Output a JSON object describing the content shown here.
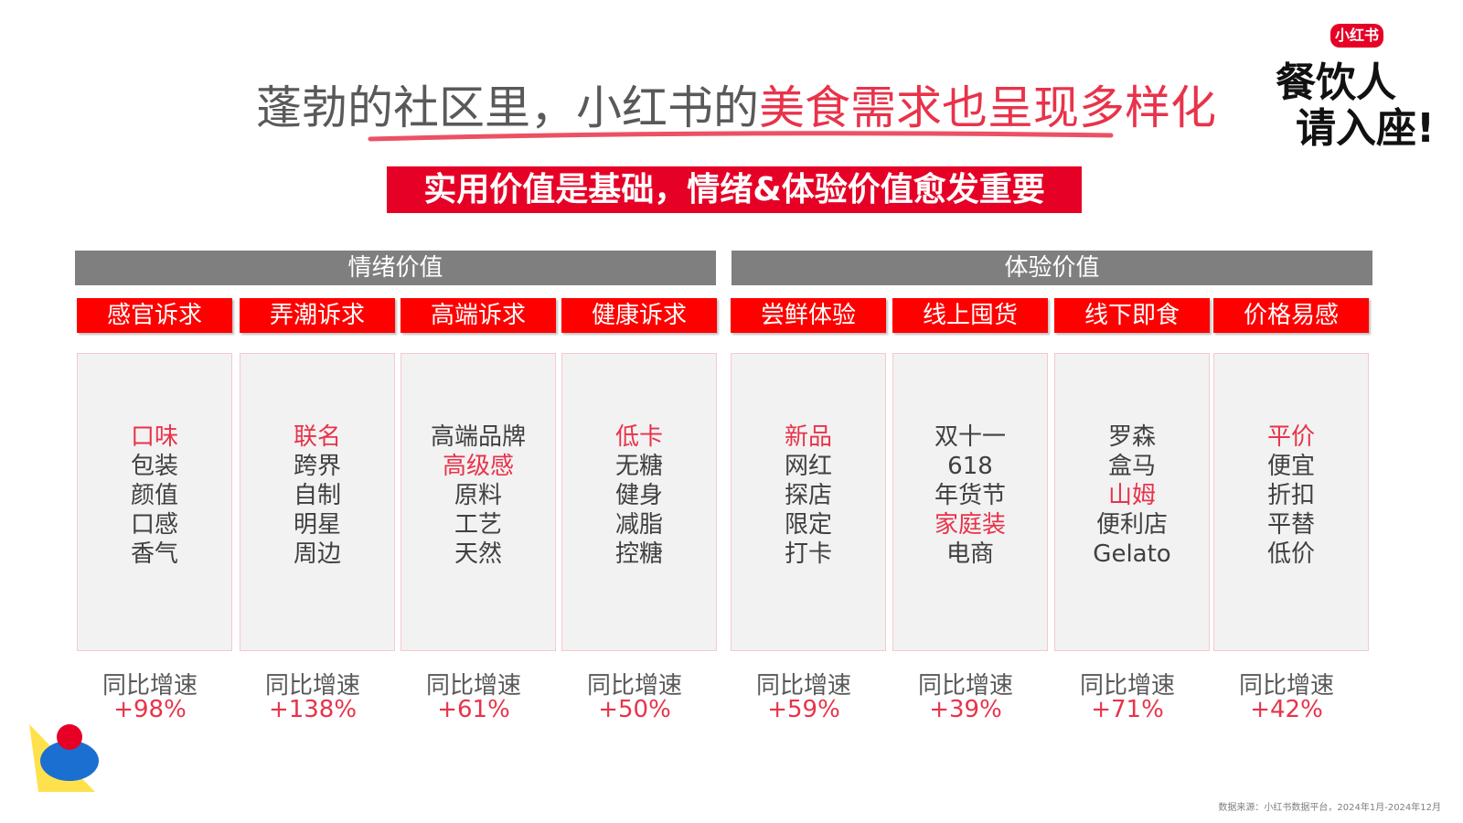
{
  "header": {
    "title_plain": "蓬勃的社区里，小红书的",
    "title_highlight": "美食需求也呈现多样化",
    "subtitle": "实用价值是基础，情绪&体验价值愈发重要"
  },
  "logo": {
    "badge": "小红书",
    "line1": "餐饮人",
    "line2": "请入座!"
  },
  "groups": [
    {
      "title": "情绪价值",
      "columns": [
        {
          "header": "感官诉求",
          "keywords": [
            {
              "text": "口味",
              "highlight": true
            },
            {
              "text": "包装",
              "highlight": false
            },
            {
              "text": "颜值",
              "highlight": false
            },
            {
              "text": "口感",
              "highlight": false
            },
            {
              "text": "香气",
              "highlight": false
            }
          ],
          "growth_label": "同比增速",
          "growth": "+98%"
        },
        {
          "header": "弄潮诉求",
          "keywords": [
            {
              "text": "联名",
              "highlight": true
            },
            {
              "text": "跨界",
              "highlight": false
            },
            {
              "text": "自制",
              "highlight": false
            },
            {
              "text": "明星",
              "highlight": false
            },
            {
              "text": "周边",
              "highlight": false
            }
          ],
          "growth_label": "同比增速",
          "growth": "+138%"
        },
        {
          "header": "高端诉求",
          "keywords": [
            {
              "text": "高端品牌",
              "highlight": false
            },
            {
              "text": "高级感",
              "highlight": true
            },
            {
              "text": "原料",
              "highlight": false
            },
            {
              "text": "工艺",
              "highlight": false
            },
            {
              "text": "天然",
              "highlight": false
            }
          ],
          "growth_label": "同比增速",
          "growth": "+61%"
        },
        {
          "header": "健康诉求",
          "keywords": [
            {
              "text": "低卡",
              "highlight": true
            },
            {
              "text": "无糖",
              "highlight": false
            },
            {
              "text": "健身",
              "highlight": false
            },
            {
              "text": "减脂",
              "highlight": false
            },
            {
              "text": "控糖",
              "highlight": false
            }
          ],
          "growth_label": "同比增速",
          "growth": "+50%"
        }
      ]
    },
    {
      "title": "体验价值",
      "columns": [
        {
          "header": "尝鲜体验",
          "keywords": [
            {
              "text": "新品",
              "highlight": true
            },
            {
              "text": "网红",
              "highlight": false
            },
            {
              "text": "探店",
              "highlight": false
            },
            {
              "text": "限定",
              "highlight": false
            },
            {
              "text": "打卡",
              "highlight": false
            }
          ],
          "growth_label": "同比增速",
          "growth": "+59%"
        },
        {
          "header": "线上囤货",
          "keywords": [
            {
              "text": "双十一",
              "highlight": false
            },
            {
              "text": "618",
              "highlight": false
            },
            {
              "text": "年货节",
              "highlight": false
            },
            {
              "text": "家庭装",
              "highlight": true
            },
            {
              "text": "电商",
              "highlight": false
            }
          ],
          "growth_label": "同比增速",
          "growth": "+39%"
        },
        {
          "header": "线下即食",
          "keywords": [
            {
              "text": "罗森",
              "highlight": false
            },
            {
              "text": "盒马",
              "highlight": false
            },
            {
              "text": "山姆",
              "highlight": true
            },
            {
              "text": "便利店",
              "highlight": false
            },
            {
              "text": "Gelato",
              "highlight": false
            }
          ],
          "growth_label": "同比增速",
          "growth": "+71%"
        },
        {
          "header": "价格易感",
          "keywords": [
            {
              "text": "平价",
              "highlight": true
            },
            {
              "text": "便宜",
              "highlight": false
            },
            {
              "text": "折扣",
              "highlight": false
            },
            {
              "text": "平替",
              "highlight": false
            },
            {
              "text": "低价",
              "highlight": false
            }
          ],
          "growth_label": "同比增速",
          "growth": "+42%"
        }
      ]
    }
  ],
  "footnote": "数据来源：小红书数据平台，2024年1月-2024年12月"
}
